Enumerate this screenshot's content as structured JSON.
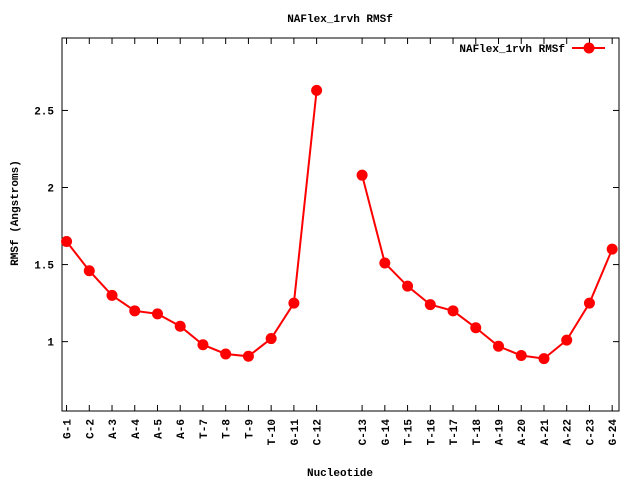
{
  "chart_data": {
    "type": "line",
    "title": "NAFlex_1rvh RMSf",
    "xlabel": "Nucleotide",
    "ylabel": "RMSf (Angstroms)",
    "xlim": [
      -0.2,
      24.3
    ],
    "ylim": [
      0.55,
      2.97
    ],
    "yticks": [
      1,
      1.5,
      2,
      2.5
    ],
    "ytick_labels": [
      "1",
      "1.5",
      "2",
      "2.5"
    ],
    "grid": false,
    "legend": {
      "position": "top-right",
      "label": "NAFlex_1rvh RMSf"
    },
    "series": [
      {
        "name": "NAFlex_1rvh RMSf",
        "color": "#ff0000",
        "points": [
          {
            "x": 0,
            "label": "G-1",
            "y": 1.65
          },
          {
            "x": 1,
            "label": "C-2",
            "y": 1.46
          },
          {
            "x": 2,
            "label": "A-3",
            "y": 1.3
          },
          {
            "x": 3,
            "label": "A-4",
            "y": 1.2
          },
          {
            "x": 4,
            "label": "A-5",
            "y": 1.18
          },
          {
            "x": 5,
            "label": "A-6",
            "y": 1.1
          },
          {
            "x": 6,
            "label": "T-7",
            "y": 0.98
          },
          {
            "x": 7,
            "label": "T-8",
            "y": 0.92
          },
          {
            "x": 8,
            "label": "T-9",
            "y": 0.905
          },
          {
            "x": 9,
            "label": "T-10",
            "y": 1.02
          },
          {
            "x": 10,
            "label": "G-11",
            "y": 1.25
          },
          {
            "x": 11,
            "label": "C-12",
            "y": 2.63
          },
          {
            "x": 13,
            "label": "C-13",
            "y": 2.08
          },
          {
            "x": 14,
            "label": "G-14",
            "y": 1.51
          },
          {
            "x": 15,
            "label": "T-15",
            "y": 1.36
          },
          {
            "x": 16,
            "label": "T-16",
            "y": 1.24
          },
          {
            "x": 17,
            "label": "T-17",
            "y": 1.2
          },
          {
            "x": 18,
            "label": "T-18",
            "y": 1.09
          },
          {
            "x": 19,
            "label": "A-19",
            "y": 0.97
          },
          {
            "x": 20,
            "label": "A-20",
            "y": 0.91
          },
          {
            "x": 21,
            "label": "A-21",
            "y": 0.89
          },
          {
            "x": 22,
            "label": "A-22",
            "y": 1.01
          },
          {
            "x": 23,
            "label": "C-23",
            "y": 1.25
          },
          {
            "x": 24,
            "label": "G-24",
            "y": 1.6
          }
        ]
      }
    ]
  }
}
